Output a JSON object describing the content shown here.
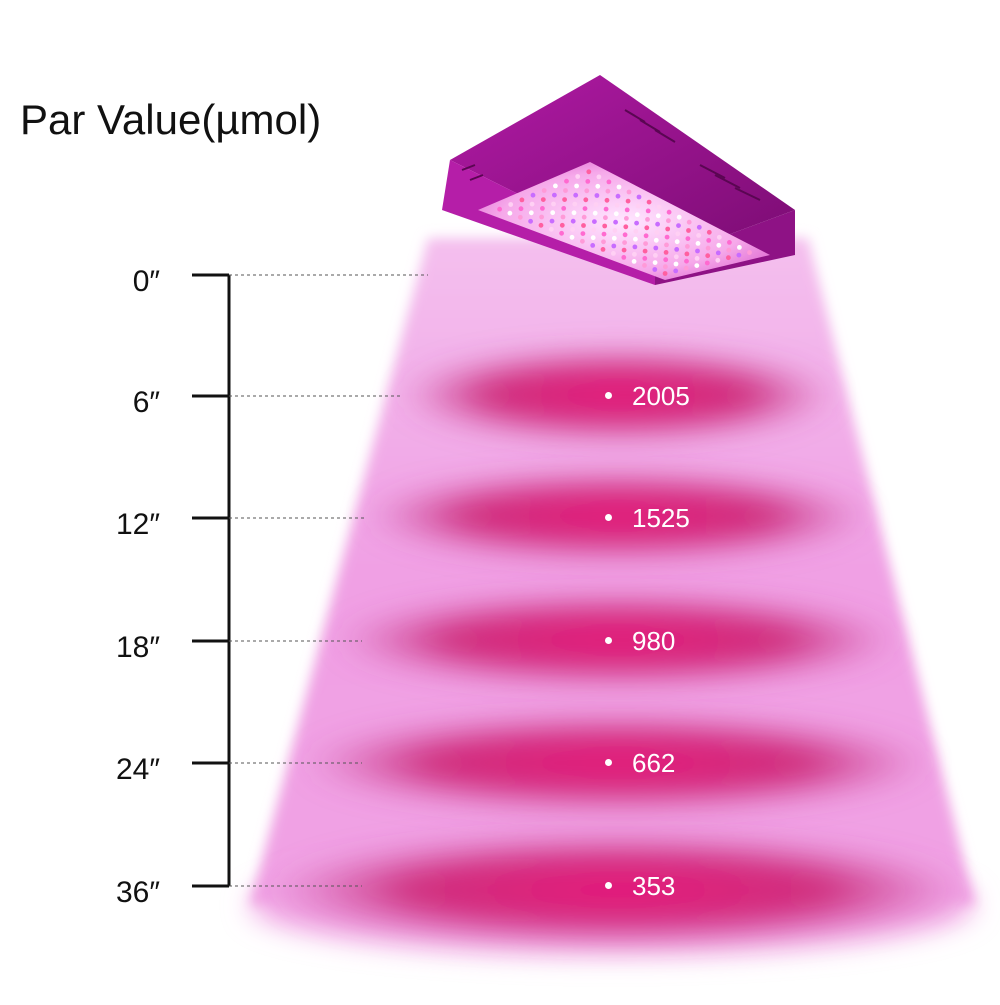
{
  "title": "Par Value(µmol)",
  "colors": {
    "beam": "#f2a6e6",
    "band": "#e0307a",
    "fixture": "#a9169c",
    "axis": "#111111"
  },
  "icons": {
    "fixture": "led-grow-light-icon"
  },
  "measurements": [
    {
      "distance": "0″",
      "par": ""
    },
    {
      "distance": "6″",
      "par": "2005"
    },
    {
      "distance": "12″",
      "par": "1525"
    },
    {
      "distance": "18″",
      "par": "980"
    },
    {
      "distance": "24″",
      "par": "662"
    },
    {
      "distance": "36″",
      "par": "353"
    }
  ]
}
